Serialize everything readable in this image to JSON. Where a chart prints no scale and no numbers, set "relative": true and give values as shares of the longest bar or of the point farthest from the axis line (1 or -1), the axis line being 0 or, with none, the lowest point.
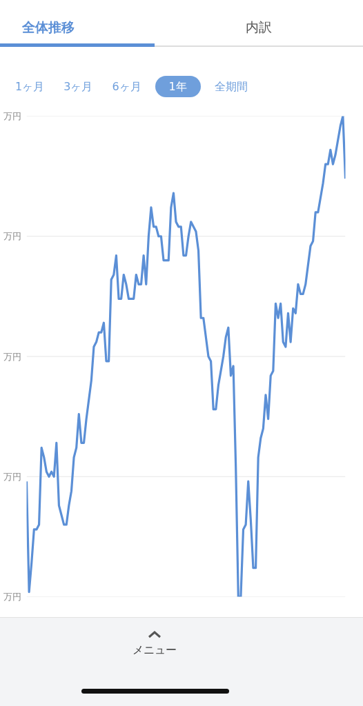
{
  "chart_data": {
    "type": "line",
    "relative": true,
    "color": "#5b8fd6",
    "line_style": "solid",
    "marker": "none",
    "grid": false,
    "categories": [
      null,
      null,
      null,
      null,
      null,
      null,
      null,
      null,
      null,
      null,
      null,
      null,
      null,
      null,
      null,
      null,
      null,
      null,
      null,
      null,
      null,
      null,
      null,
      null,
      null,
      null,
      null,
      null,
      null,
      null,
      null,
      null,
      null,
      null,
      null,
      null,
      null,
      null,
      null,
      null,
      null,
      null,
      null,
      null,
      null,
      null,
      null,
      null,
      null,
      null,
      null,
      null,
      null,
      null,
      null,
      null,
      null,
      null,
      null,
      null,
      null,
      null,
      null,
      null,
      null,
      null,
      null,
      null,
      null,
      null,
      null,
      null,
      null,
      null,
      null,
      null,
      null,
      null,
      null,
      null,
      null,
      null,
      null,
      null,
      null,
      null,
      null,
      null,
      null,
      null,
      null,
      null,
      null,
      null,
      null,
      null,
      null,
      null,
      null,
      null,
      null,
      null,
      null,
      null,
      null,
      null,
      null,
      null,
      null,
      null,
      null,
      null,
      null,
      null,
      null,
      null,
      null,
      null,
      null,
      null,
      null,
      null,
      null,
      null,
      null,
      null,
      null,
      null,
      null
    ],
    "values": [
      0.24,
      0.01,
      0.07,
      0.14,
      0.14,
      0.15,
      0.31,
      0.29,
      0.26,
      0.25,
      0.26,
      0.25,
      0.32,
      0.19,
      0.17,
      0.15,
      0.15,
      0.19,
      0.22,
      0.29,
      0.31,
      0.38,
      0.32,
      0.32,
      0.37,
      0.41,
      0.45,
      0.52,
      0.53,
      0.55,
      0.55,
      0.57,
      0.49,
      0.49,
      0.66,
      0.67,
      0.71,
      0.62,
      0.62,
      0.67,
      0.65,
      0.62,
      0.62,
      0.62,
      0.67,
      0.65,
      0.65,
      0.71,
      0.65,
      0.75,
      0.81,
      0.77,
      0.77,
      0.75,
      0.75,
      0.7,
      0.7,
      0.7,
      0.81,
      0.84,
      0.78,
      0.77,
      0.77,
      0.71,
      0.71,
      0.75,
      0.78,
      0.77,
      0.76,
      0.72,
      0.58,
      0.58,
      0.54,
      0.5,
      0.49,
      0.39,
      0.39,
      0.44,
      0.47,
      0.5,
      0.54,
      0.56,
      0.46,
      0.48,
      0.27,
      0,
      0,
      0.14,
      0.15,
      0.24,
      0.16,
      0.06,
      0.06,
      0.29,
      0.33,
      0.35,
      0.42,
      0.37,
      0.46,
      0.47,
      0.61,
      0.58,
      0.61,
      0.53,
      0.52,
      0.59,
      0.53,
      0.6,
      0.59,
      0.65,
      0.63,
      0.63,
      0.65,
      0.69,
      0.73,
      0.74,
      0.8,
      0.8,
      0.83,
      0.86,
      0.9,
      0.9,
      0.93,
      0.9,
      0.92,
      0.95,
      0.98,
      1,
      0.87
    ],
    "ref_lines": [
      {
        "axis": "y",
        "value": 1,
        "label": "万円",
        "color": "#e6e6e6"
      },
      {
        "axis": "y",
        "value": 0.75,
        "label": "万円",
        "color": "#e6e6e6"
      },
      {
        "axis": "y",
        "value": 0.5,
        "label": "万円",
        "color": "#e6e6e6"
      },
      {
        "axis": "y",
        "value": 0.25,
        "label": "万円",
        "color": "#e6e6e6"
      },
      {
        "axis": "y",
        "value": 0,
        "label": "万円",
        "color": "#e6e6e6"
      }
    ],
    "annotations": [
      "全体推移",
      "内訳",
      "1ヶ月",
      "3ヶ月",
      "6ヶ月",
      "1年",
      "全期間",
      "メニュー"
    ]
  }
}
